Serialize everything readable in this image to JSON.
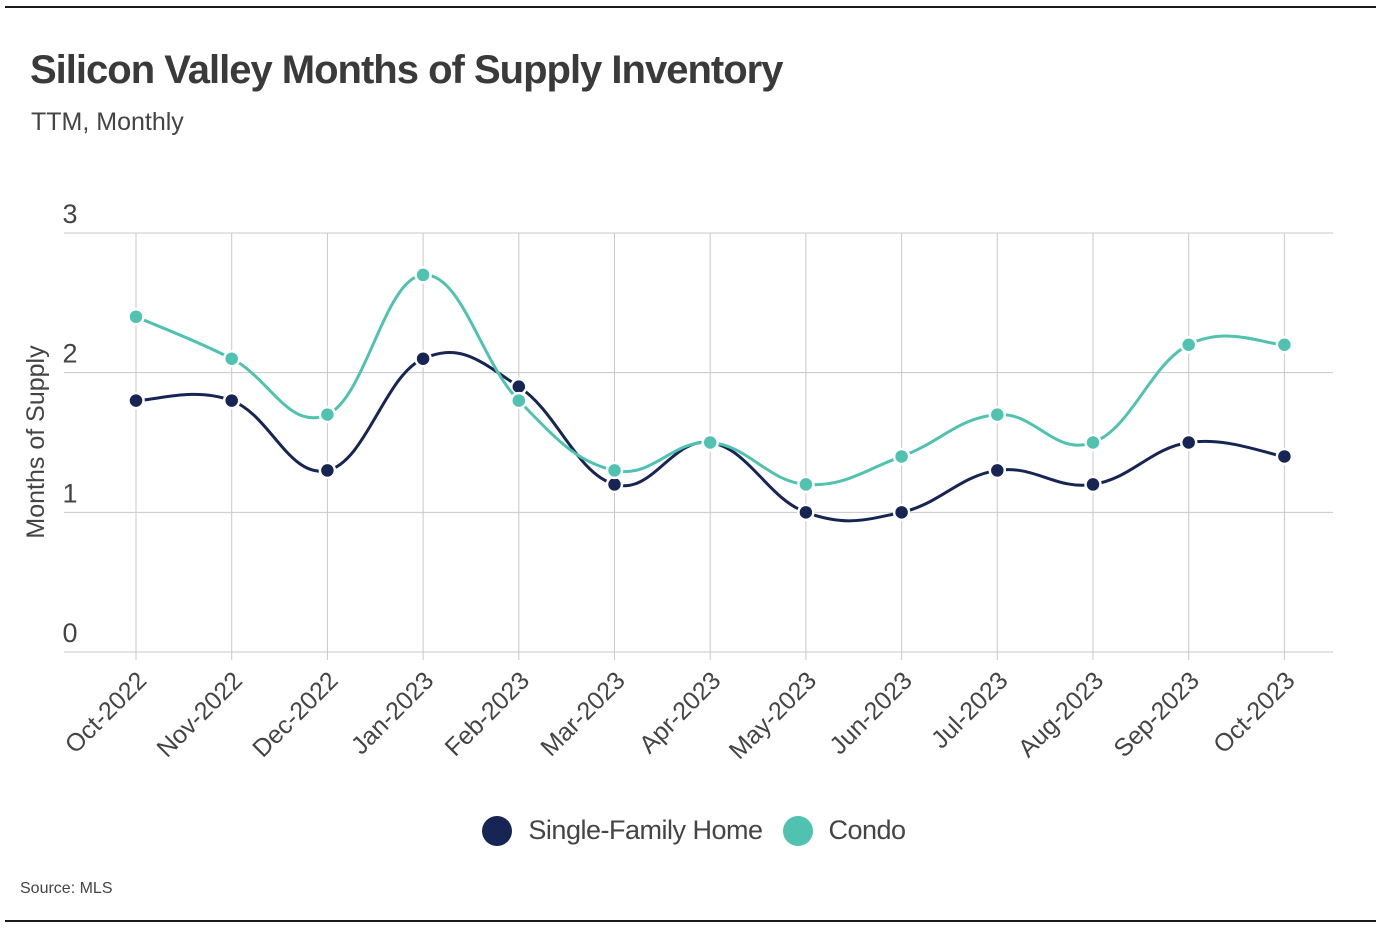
{
  "title": "Silicon Valley Months of Supply Inventory",
  "subtitle": "TTM, Monthly",
  "source": "Source:  MLS",
  "colors": {
    "single_family": "#172554",
    "condo": "#4fc3b0",
    "grid": "#c8c8c8",
    "text": "#444444"
  },
  "chart_data": {
    "type": "line",
    "title": "Silicon Valley Months of Supply Inventory",
    "subtitle": "TTM, Monthly",
    "xlabel": "",
    "ylabel": "Months of Supply",
    "ylim": [
      0,
      3
    ],
    "yticks": [
      0,
      1,
      2,
      3
    ],
    "grid": true,
    "legend": "bottom-center",
    "categories": [
      "Oct-2022",
      "Nov-2022",
      "Dec-2022",
      "Jan-2023",
      "Feb-2023",
      "Mar-2023",
      "Apr-2023",
      "May-2023",
      "Jun-2023",
      "Jul-2023",
      "Aug-2023",
      "Sep-2023",
      "Oct-2023"
    ],
    "series": [
      {
        "name": "Single-Family Home",
        "color": "#172554",
        "values": [
          1.8,
          1.8,
          1.3,
          2.1,
          1.9,
          1.2,
          1.5,
          1.0,
          1.0,
          1.3,
          1.2,
          1.5,
          1.4
        ]
      },
      {
        "name": "Condo",
        "color": "#4fc3b0",
        "values": [
          2.4,
          2.1,
          1.7,
          2.7,
          1.8,
          1.3,
          1.5,
          1.2,
          1.4,
          1.7,
          1.5,
          2.2,
          2.2
        ]
      }
    ]
  }
}
